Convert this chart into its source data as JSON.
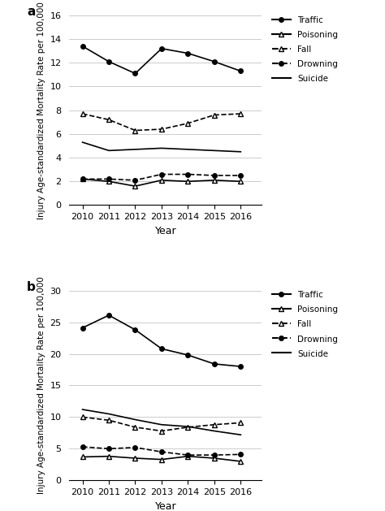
{
  "years": [
    2010,
    2011,
    2012,
    2013,
    2014,
    2015,
    2016
  ],
  "panel_a": {
    "traffic": [
      13.4,
      12.1,
      11.1,
      13.2,
      12.8,
      12.1,
      11.3
    ],
    "poisoning": [
      2.2,
      2.0,
      1.6,
      2.1,
      2.0,
      2.1,
      2.0
    ],
    "fall": [
      7.7,
      7.2,
      6.3,
      6.4,
      6.9,
      7.6,
      7.7
    ],
    "drowning": [
      2.2,
      2.2,
      2.1,
      2.6,
      2.6,
      2.5,
      2.5
    ],
    "suicide": [
      5.3,
      4.6,
      4.7,
      4.8,
      4.7,
      4.6,
      4.5
    ],
    "ylim": [
      0,
      16
    ],
    "yticks": [
      0,
      2,
      4,
      6,
      8,
      10,
      12,
      14,
      16
    ],
    "ylabel": "Injury Age-standardized Mortality Rate per 100,000",
    "panel_label": "a"
  },
  "panel_b": {
    "traffic": [
      24.1,
      26.1,
      23.8,
      20.8,
      19.8,
      18.4,
      18.0
    ],
    "poisoning": [
      3.7,
      3.8,
      3.5,
      3.3,
      3.8,
      3.5,
      3.0
    ],
    "fall": [
      10.0,
      9.5,
      8.4,
      7.8,
      8.4,
      8.8,
      9.1
    ],
    "drowning": [
      5.3,
      5.0,
      5.2,
      4.5,
      4.0,
      4.0,
      4.1
    ],
    "suicide": [
      11.2,
      10.5,
      9.6,
      8.8,
      8.5,
      7.8,
      7.2
    ],
    "ylim": [
      0,
      30
    ],
    "yticks": [
      0,
      5,
      10,
      15,
      20,
      25,
      30
    ],
    "ylabel": "Injury Age-standardized Mortality Rate per 100,000",
    "panel_label": "b"
  },
  "xlabel": "Year",
  "legend_labels": [
    "Traffic",
    "Poisoning",
    "Fall",
    "Drowning",
    "Suicide"
  ],
  "fig_width": 4.74,
  "fig_height": 6.29
}
